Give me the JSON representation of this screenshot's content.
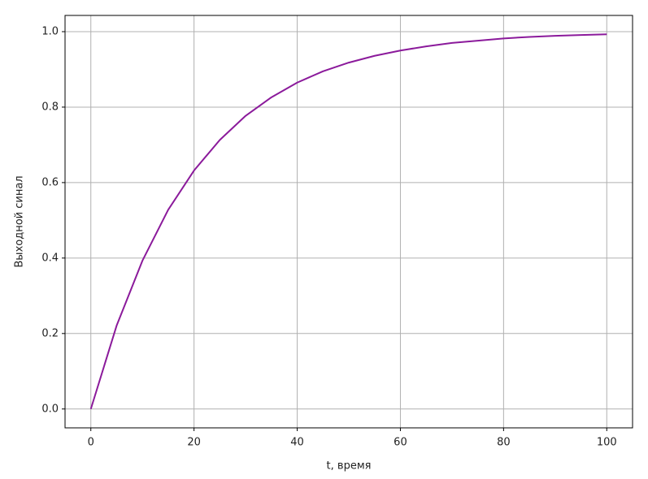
{
  "chart_data": {
    "type": "line",
    "xlabel": "t, время",
    "ylabel": "Выходной синал",
    "x": [
      0,
      5,
      10,
      15,
      20,
      25,
      30,
      35,
      40,
      45,
      50,
      55,
      60,
      65,
      70,
      75,
      80,
      85,
      90,
      95,
      100
    ],
    "values": [
      0,
      0.221,
      0.393,
      0.528,
      0.632,
      0.713,
      0.777,
      0.826,
      0.865,
      0.895,
      0.918,
      0.936,
      0.95,
      0.961,
      0.97,
      0.976,
      0.982,
      0.986,
      0.989,
      0.991,
      0.993
    ],
    "color": "#8b1a9b",
    "xlim": [
      -5,
      105
    ],
    "xticks": [
      0,
      20,
      40,
      60,
      80,
      100
    ],
    "ylim": [
      -0.05,
      1.043
    ],
    "yticks": [
      {
        "value": 0,
        "label": "0.0"
      },
      0.2,
      0.4,
      0.6,
      0.8,
      {
        "value": 1,
        "label": "1.0"
      }
    ],
    "grid": true
  }
}
